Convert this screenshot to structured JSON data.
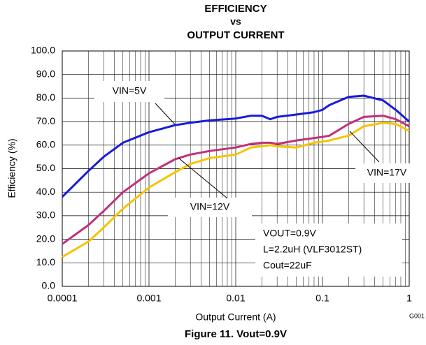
{
  "chart_data": {
    "type": "line",
    "title": [
      "EFFICIENCY",
      "vs",
      "OUTPUT CURRENT"
    ],
    "caption": "Figure 11. Vout=0.9V",
    "figure_id": "G001",
    "xlabel": "Output Current (A)",
    "ylabel": "Efficiency (%)",
    "xscale": "log",
    "grid": true,
    "x": [
      0.0001,
      0.0002,
      0.0003,
      0.0005,
      0.001,
      0.002,
      0.003,
      0.005,
      0.01,
      0.015,
      0.02,
      0.025,
      0.03,
      0.05,
      0.08,
      0.1,
      0.12,
      0.2,
      0.3,
      0.5,
      0.7,
      1
    ],
    "series": [
      {
        "name": "VIN=5V",
        "color": "#1a1adc",
        "values": [
          38,
          49,
          55,
          61,
          65.5,
          68.5,
          69.5,
          70.5,
          71.3,
          72.5,
          72.5,
          71,
          72,
          73,
          74,
          75,
          77,
          80.5,
          81,
          79,
          75,
          70
        ]
      },
      {
        "name": "VIN=12V",
        "color": "#c0307a",
        "values": [
          18,
          26,
          32,
          40,
          48,
          54,
          56,
          57.5,
          59,
          60.5,
          61,
          61,
          60.5,
          62,
          63,
          63.5,
          64,
          69,
          72,
          72.5,
          71,
          68
        ]
      },
      {
        "name": "VIN=17V",
        "color": "#f5c400",
        "values": [
          12.5,
          19,
          25,
          33,
          42,
          48.5,
          52,
          54.5,
          56,
          59,
          59.5,
          60,
          59.5,
          59,
          61,
          61.5,
          62,
          64,
          68,
          69.5,
          69,
          66
        ]
      }
    ],
    "note_lines": [
      "VOUT=0.9V",
      "L=2.2uH (VLF3012ST)",
      "Cout=22uF"
    ],
    "xlim": [
      0.0001,
      1
    ],
    "xticks": [
      0.0001,
      0.001,
      0.01,
      0.1,
      1
    ],
    "ylim": [
      0,
      100
    ],
    "yticks": [
      {
        "value": 0,
        "label": "0.0"
      },
      {
        "value": 10,
        "label": "10.0"
      },
      {
        "value": 20,
        "label": "20.0"
      },
      {
        "value": 30,
        "label": "30.0"
      },
      {
        "value": 40,
        "label": "40.0"
      },
      {
        "value": 50,
        "label": "50.0"
      },
      {
        "value": 60,
        "label": "60.0"
      },
      {
        "value": 70,
        "label": "70.0"
      },
      {
        "value": 80,
        "label": "80.0"
      },
      {
        "value": 90,
        "label": "90.0"
      },
      {
        "value": 100,
        "label": "100.0"
      }
    ]
  }
}
